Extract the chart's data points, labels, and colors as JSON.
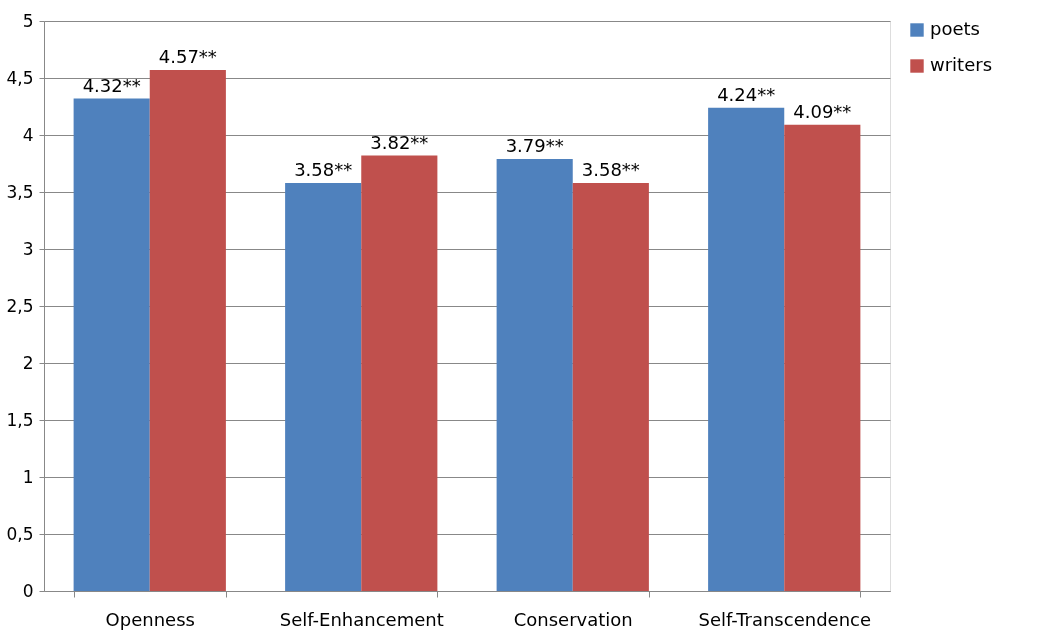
{
  "chart_data": {
    "type": "bar",
    "categories": [
      "Openness",
      "Self-Enhancement",
      "Conservation",
      "Self-Transcendence"
    ],
    "series": [
      {
        "name": "poets",
        "color": "#4f81bd",
        "values": [
          4.32,
          3.58,
          3.79,
          4.24
        ],
        "value_labels": [
          "4.32**",
          "3.58**",
          "3.79**",
          "4.24**"
        ]
      },
      {
        "name": "writers",
        "color": "#c0504d",
        "values": [
          4.57,
          3.82,
          3.58,
          4.09
        ],
        "value_labels": [
          "4.57**",
          "3.82**",
          "3.58**",
          "4.09**"
        ]
      }
    ],
    "ylim": [
      0,
      5
    ],
    "yticks": [
      0,
      {
        "value": 0.5,
        "label": "0,5"
      },
      1,
      {
        "value": 1.5,
        "label": "1,5"
      },
      2,
      {
        "value": 2.5,
        "label": "2,5"
      },
      3,
      {
        "value": 3.5,
        "label": "3,5"
      },
      4,
      {
        "value": 4.5,
        "label": "4,5"
      },
      5
    ],
    "grid": "y",
    "legend": "right"
  }
}
